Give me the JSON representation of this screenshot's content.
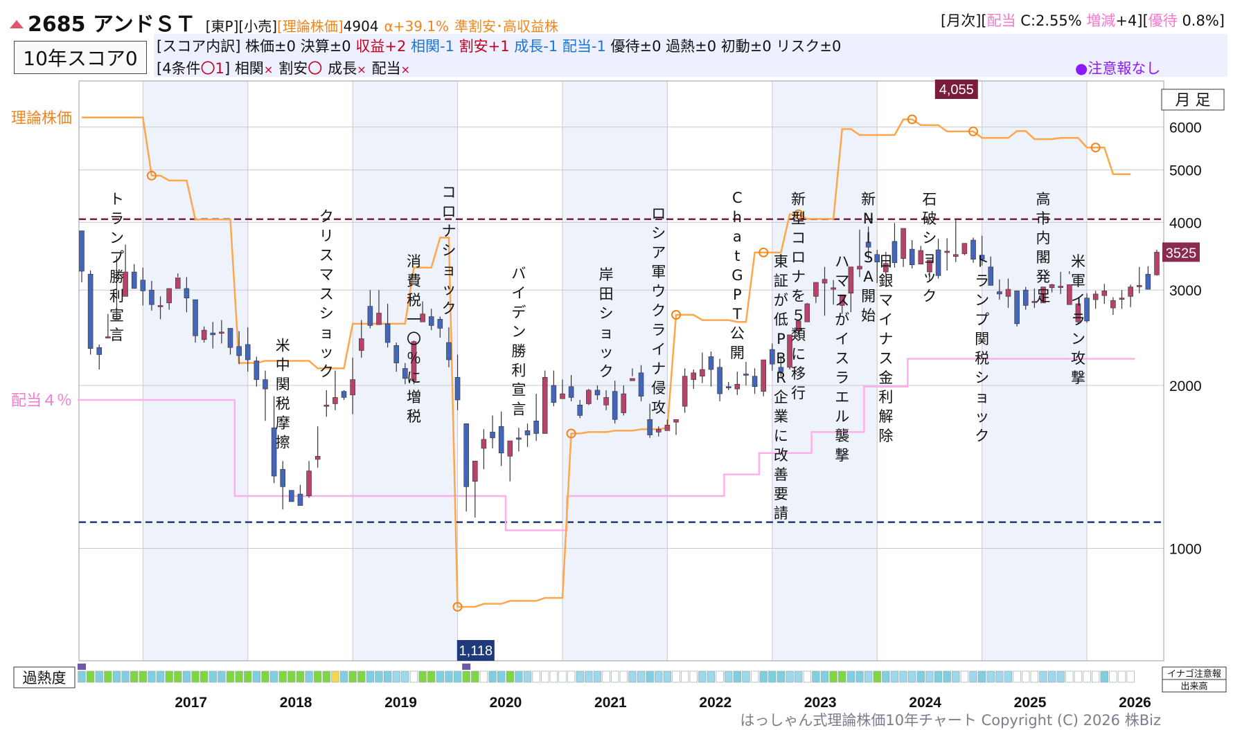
{
  "header": {
    "code_name": "2685 アンドＳＴ",
    "market": "[東P][小売]",
    "theory_label": "[理論株価]",
    "theory_value": "4904",
    "alpha": "α+39.1%",
    "tags": "準割安･高収益株",
    "right_monthly": "[月次][",
    "right_div_label": "配当",
    "right_div_value": " C:2.55% ",
    "right_change_label": "増減",
    "right_change_value": "+4][",
    "right_yutai_label": "優待",
    "right_yutai_value": " 0.8%]"
  },
  "score": {
    "title": "10年スコア0",
    "breakdown": [
      {
        "text": "[スコア内訳] 株価±0 ",
        "color": "normal"
      },
      {
        "text": "決算±0 ",
        "color": "normal"
      },
      {
        "text": "収益+2 ",
        "color": "red"
      },
      {
        "text": "相関-1 ",
        "color": "blue"
      },
      {
        "text": "割安+1 ",
        "color": "red"
      },
      {
        "text": "成長-1 ",
        "color": "blue"
      },
      {
        "text": "配当-1 ",
        "color": "blue"
      },
      {
        "text": "優待±0 過熱±0 初動±0 リスク±0",
        "color": "normal"
      }
    ],
    "conditions_prefix": "[4条件",
    "conditions_count": "〇1",
    "conditions_suffix": "] ",
    "conditions": [
      {
        "label": "相関",
        "mark": "×"
      },
      {
        "label": "割安",
        "mark": "〇"
      },
      {
        "label": "成長",
        "mark": "×"
      },
      {
        "label": "配当",
        "mark": "×"
      }
    ],
    "notice": "●注意報なし"
  },
  "chart_data": {
    "type": "candlestick",
    "title": "はっしゃん式理論株価10年チャート",
    "scale": "log",
    "ylim": [
      620,
      7300
    ],
    "yticks": [
      1000,
      2000,
      3000,
      4000,
      5000,
      6000
    ],
    "ytick_labels": [
      "1000",
      "2000",
      "3000",
      "4000",
      "5000",
      "6000"
    ],
    "x_years": [
      "2017",
      "2018",
      "2019",
      "2020",
      "2021",
      "2022",
      "2023",
      "2024",
      "2025",
      "2026"
    ],
    "period_label": "月 足",
    "max_label": "4,055",
    "max_value": 4055,
    "min_label": "1,118",
    "min_value": 1118,
    "last_label": "3525",
    "last_value": 3525,
    "theory_legend": "理論株価",
    "dividend_legend": "配当４％",
    "heat_label": "過熱度",
    "inago_label": "イナゴ注意報",
    "volume_label": "出来高",
    "candles": [
      [
        3860,
        3720,
        3250,
        3100
      ],
      [
        3210,
        3260,
        2340,
        2280
      ],
      [
        2350,
        2380,
        2280,
        2140
      ],
      [
        2460,
        2710,
        2460,
        2450
      ],
      [
        2650,
        3470,
        2660,
        2650
      ],
      [
        2920,
        3230,
        3240,
        3640
      ],
      [
        3240,
        3240,
        3020,
        3350
      ],
      [
        3130,
        3300,
        2990,
        2810
      ],
      [
        3000,
        3120,
        2820,
        2750
      ],
      [
        2810,
        2920,
        2810,
        2650
      ],
      [
        2840,
        2970,
        3020,
        2760
      ],
      [
        3020,
        3220,
        3160,
        3170
      ],
      [
        3020,
        3170,
        2900,
        2730
      ],
      [
        2880,
        2880,
        2470,
        2400
      ],
      [
        2430,
        2570,
        2530,
        2400
      ],
      [
        2500,
        2620,
        2480,
        2340
      ],
      [
        2510,
        2640,
        2510,
        2390
      ],
      [
        2550,
        2550,
        2350,
        2280
      ],
      [
        2360,
        2520,
        2270,
        2190
      ],
      [
        2380,
        2560,
        2230,
        2120
      ],
      [
        2220,
        2260,
        2050,
        1990
      ],
      [
        2050,
        2130,
        1970,
        1720
      ],
      [
        1670,
        1910,
        1360,
        1320
      ],
      [
        1400,
        1450,
        1300,
        1180
      ],
      [
        1280,
        1280,
        1220,
        1250
      ],
      [
        1260,
        1310,
        1200,
        1200
      ],
      [
        1250,
        1450,
        1390,
        1240
      ],
      [
        1460,
        1680,
        1480,
        1410
      ],
      [
        1830,
        1960,
        1840,
        1750
      ],
      [
        1850,
        2130,
        1900,
        1800
      ],
      [
        1950,
        1960,
        1900,
        1880
      ],
      [
        1920,
        2250,
        2050,
        1770
      ],
      [
        2320,
        2640,
        2440,
        2250
      ],
      [
        2800,
        3000,
        2580,
        2550
      ],
      [
        2590,
        3000,
        2720,
        2650
      ],
      [
        2600,
        2830,
        2400,
        2350
      ],
      [
        2370,
        2400,
        2200,
        2120
      ],
      [
        2150,
        2200,
        2060,
        2010
      ],
      [
        2040,
        2420,
        2410,
        2010
      ],
      [
        2620,
        2860,
        2710,
        2620
      ],
      [
        2680,
        2770,
        2580,
        2530
      ],
      [
        2650,
        2680,
        2550,
        2450
      ],
      [
        2400,
        2560,
        2230,
        2160
      ],
      [
        2070,
        2280,
        1880,
        1800
      ],
      [
        1700,
        1700,
        1300,
        1170
      ],
      [
        1330,
        1440,
        1450,
        1140
      ],
      [
        1530,
        1660,
        1590,
        1400
      ],
      [
        1640,
        1760,
        1600,
        1530
      ],
      [
        1680,
        1790,
        1500,
        1420
      ],
      [
        1480,
        1540,
        1580,
        1330
      ],
      [
        1600,
        1670,
        1590,
        1510
      ],
      [
        1650,
        1700,
        1620,
        1540
      ],
      [
        1720,
        1930,
        1630,
        1580
      ],
      [
        1630,
        2130,
        2070,
        1630
      ],
      [
        2000,
        2130,
        1860,
        1830
      ],
      [
        1890,
        2050,
        1930,
        1900
      ],
      [
        1990,
        2090,
        1900,
        1870
      ],
      [
        1840,
        1880,
        1760,
        1740
      ],
      [
        1850,
        1970,
        1960,
        1840
      ],
      [
        1960,
        2000,
        1920,
        1880
      ],
      [
        1840,
        1960,
        1900,
        1800
      ],
      [
        1950,
        2040,
        1730,
        1700
      ],
      [
        1780,
        2000,
        1930,
        1760
      ],
      [
        2040,
        2150,
        2060,
        2080
      ],
      [
        2110,
        2180,
        1910,
        1870
      ],
      [
        1730,
        1850,
        1620,
        1600
      ],
      [
        1640,
        1680,
        1660,
        1610
      ],
      [
        1650,
        1730,
        1690,
        1660
      ],
      [
        1710,
        1730,
        1730,
        1620
      ],
      [
        1830,
        2150,
        2080,
        1780
      ],
      [
        2050,
        2140,
        2110,
        1970
      ],
      [
        2080,
        2300,
        2140,
        2020
      ],
      [
        2260,
        2310,
        2140,
        1990
      ],
      [
        2160,
        2240,
        1930,
        1870
      ],
      [
        1990,
        2030,
        1980,
        1960
      ],
      [
        1970,
        2120,
        2010,
        1920
      ],
      [
        2100,
        2210,
        2090,
        2000
      ],
      [
        2080,
        2150,
        1990,
        1930
      ],
      [
        1950,
        2150,
        2230,
        1910
      ],
      [
        2330,
        2390,
        2190,
        2130
      ],
      [
        2160,
        2270,
        2120,
        2080
      ],
      [
        2160,
        2340,
        2480,
        2140
      ],
      [
        2530,
        2610,
        2630,
        2480
      ],
      [
        2620,
        2840,
        2830,
        2620
      ],
      [
        2920,
        3030,
        3100,
        2840
      ],
      [
        3090,
        3310,
        3140,
        2690
      ],
      [
        3010,
        3130,
        3030,
        2820
      ],
      [
        2810,
        2890,
        2940,
        2710
      ],
      [
        2960,
        3230,
        3310,
        2730
      ],
      [
        3280,
        3880,
        3320,
        3170
      ],
      [
        3680,
        3930,
        3600,
        3420
      ],
      [
        3490,
        3560,
        3380,
        3090
      ],
      [
        3240,
        3530,
        3360,
        3200
      ],
      [
        3690,
        3990,
        3370,
        3300
      ],
      [
        3430,
        3900,
        3900,
        3310
      ],
      [
        3570,
        3710,
        3340,
        3290
      ],
      [
        3350,
        3620,
        3550,
        3370
      ],
      [
        3240,
        3380,
        3410,
        3120
      ],
      [
        3560,
        3730,
        3190,
        3150
      ],
      [
        3530,
        3740,
        3540,
        3260
      ],
      [
        3460,
        4050,
        3490,
        3380
      ],
      [
        3500,
        3580,
        3660,
        3480
      ],
      [
        3710,
        3750,
        3420,
        3370
      ],
      [
        3480,
        3780,
        3420,
        3330
      ],
      [
        3310,
        3460,
        3060,
        3160
      ],
      [
        2980,
        3140,
        2950,
        2880
      ],
      [
        2920,
        3150,
        3010,
        2780
      ],
      [
        2990,
        2980,
        2600,
        2570
      ],
      [
        3000,
        3040,
        2810,
        2760
      ],
      [
        2860,
        3020,
        2860,
        2780
      ],
      [
        2840,
        3030,
        3040,
        2840
      ],
      [
        3030,
        3080,
        3070,
        2970
      ],
      [
        3040,
        3240,
        3050,
        2950
      ],
      [
        2820,
        3250,
        3070,
        3210
      ],
      [
        2620,
        2660,
        2830,
        2600
      ],
      [
        2900,
        2960,
        2630,
        2610
      ],
      [
        2880,
        2990,
        2950,
        2770
      ],
      [
        2930,
        3080,
        2990,
        2830
      ],
      [
        2780,
        2910,
        2870,
        2700
      ],
      [
        2890,
        3000,
        2900,
        2770
      ],
      [
        2920,
        3070,
        3040,
        2790
      ],
      [
        3060,
        3310,
        3060,
        2960
      ],
      [
        3210,
        3320,
        3010,
        3020
      ],
      [
        3200,
        3560,
        3525,
        3190
      ]
    ],
    "theory_price": [
      6250,
      6250,
      6250,
      6250,
      6250,
      6250,
      6250,
      6250,
      4880,
      4880,
      4780,
      4780,
      4780,
      4050,
      4050,
      4050,
      4050,
      4050,
      2200,
      2200,
      2200,
      2220,
      2220,
      2220,
      2220,
      2220,
      2220,
      2150,
      2150,
      2150,
      2150,
      2600,
      2600,
      2600,
      2600,
      2600,
      2600,
      2600,
      3300,
      3300,
      3300,
      3750,
      3750,
      780,
      780,
      780,
      790,
      790,
      790,
      800,
      800,
      800,
      800,
      810,
      810,
      810,
      1630,
      1630,
      1640,
      1640,
      1640,
      1650,
      1650,
      1650,
      1660,
      1660,
      1660,
      1670,
      2700,
      2700,
      2700,
      2640,
      2640,
      2640,
      2640,
      2620,
      2620,
      3520,
      3520,
      3520,
      3520,
      4140,
      4140,
      4060,
      4060,
      4060,
      4060,
      5950,
      5950,
      5800,
      5800,
      5800,
      5800,
      5800,
      6200,
      6200,
      6050,
      6050,
      6050,
      5890,
      5890,
      5890,
      5890,
      5730,
      5730,
      5730,
      5730,
      5900,
      5900,
      5700,
      5700,
      5700,
      5730,
      5730,
      5730,
      5500,
      5500,
      5500,
      4910,
      4910,
      4910
    ],
    "dividend_line": [
      1880,
      1880,
      1880,
      1880,
      1880,
      1880,
      1880,
      1880,
      1880,
      1880,
      1880,
      1880,
      1880,
      1880,
      1880,
      1880,
      1880,
      1880,
      1250,
      1250,
      1250,
      1250,
      1250,
      1250,
      1250,
      1250,
      1250,
      1250,
      1250,
      1250,
      1250,
      1250,
      1250,
      1250,
      1250,
      1250,
      1250,
      1250,
      1250,
      1250,
      1250,
      1250,
      1250,
      1250,
      1250,
      1250,
      1250,
      1250,
      1250,
      1080,
      1080,
      1080,
      1080,
      1080,
      1080,
      1080,
      1250,
      1250,
      1250,
      1250,
      1250,
      1250,
      1250,
      1250,
      1250,
      1250,
      1250,
      1250,
      1250,
      1250,
      1250,
      1250,
      1250,
      1250,
      1370,
      1370,
      1370,
      1370,
      1500,
      1500,
      1500,
      1500,
      1500,
      1500,
      1640,
      1640,
      1640,
      1640,
      1640,
      1640,
      1990,
      1990,
      1990,
      1990,
      1990,
      2240,
      2240,
      2240,
      2240,
      2240,
      2240,
      2240,
      2240,
      2240,
      2240,
      2240,
      2240,
      2240,
      2240,
      2240,
      2240,
      2240,
      2240,
      2240,
      2240,
      2240,
      2240,
      2240,
      2240,
      2240,
      2240
    ],
    "theory_markers": [
      8,
      43,
      56,
      68,
      78,
      82,
      95,
      102,
      116
    ],
    "events": [
      {
        "text": "トランプ勝利宣言",
        "month": 4
      },
      {
        "text": "米中関税摩擦",
        "month": 23
      },
      {
        "text": "クリスマスショック",
        "month": 28
      },
      {
        "text": "消費税一〇％に増税",
        "month": 38
      },
      {
        "text": "コロナショック",
        "month": 42
      },
      {
        "text": "バイデン勝利宣言",
        "month": 50
      },
      {
        "text": "岸田ショック",
        "month": 60
      },
      {
        "text": "ロシア軍ウクライナ侵攻",
        "month": 66
      },
      {
        "text": "ChatGPT公開",
        "month": 75
      },
      {
        "text": "東証が低PBR企業に改善要請",
        "month": 80
      },
      {
        "text": "新型コロナを５類に移行",
        "month": 82
      },
      {
        "text": "ハマスがイスラエル襲撃",
        "month": 87
      },
      {
        "text": "新NISA開始",
        "month": 90
      },
      {
        "text": "日銀マイナス金利解除",
        "month": 92
      },
      {
        "text": "石破ショック",
        "month": 97
      },
      {
        "text": "トランプ関税ショック",
        "month": 103
      },
      {
        "text": "高市内閣発足",
        "month": 110
      },
      {
        "text": "米軍イラン攻撃",
        "month": 114
      }
    ],
    "heat_levels": [
      2,
      3,
      2,
      3,
      2,
      2,
      3,
      3,
      2,
      2,
      3,
      3,
      2,
      3,
      3,
      2,
      2,
      3,
      3,
      3,
      2,
      3,
      2,
      3,
      3,
      3,
      2,
      3,
      3,
      4,
      2,
      3,
      3,
      2,
      2,
      2,
      1,
      1,
      0,
      3,
      3,
      2,
      2,
      2,
      3,
      3,
      0,
      2,
      2,
      3,
      2,
      1,
      0,
      0,
      0,
      0,
      0,
      1,
      1,
      1,
      0,
      0,
      0,
      1,
      1,
      2,
      1,
      1,
      0,
      0,
      0,
      1,
      1,
      0,
      1,
      2,
      1,
      0,
      2,
      2,
      2,
      1,
      1,
      0,
      2,
      2,
      3,
      3,
      2,
      2,
      1,
      3,
      2,
      1,
      1,
      1,
      2,
      1,
      2,
      2,
      1,
      0,
      1,
      2,
      1,
      1,
      1,
      0,
      0,
      0,
      1,
      1,
      1,
      0,
      0,
      0,
      0,
      2,
      0,
      0,
      0
    ],
    "heat_markers": [
      0,
      44
    ]
  },
  "copyright": "はっしゃん式理論株価10年チャート Copyright (C) 2026 株Biz"
}
